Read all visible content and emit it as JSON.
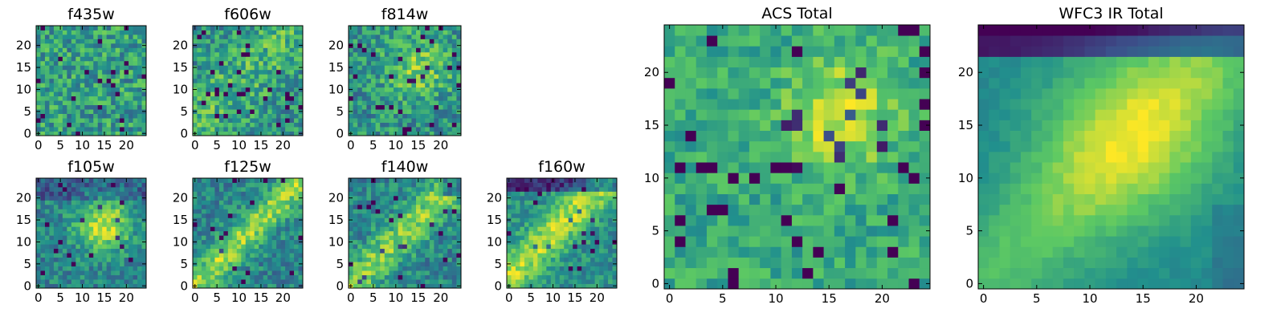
{
  "chart_data": [
    {
      "type": "heatmap",
      "title": "f435w",
      "x": [
        0,
        24
      ],
      "y": [
        0,
        24
      ],
      "xlim": [
        -0.5,
        24.5
      ],
      "ylim": [
        -0.5,
        24.5
      ],
      "xticks": [
        "0",
        "5",
        "10",
        "15",
        "20"
      ],
      "yticks": [
        "0",
        "5",
        "10",
        "15",
        "20"
      ],
      "grid": false,
      "colormap": "viridis",
      "pattern": "uniform noisy field, no clear source",
      "value_range": [
        0,
        1
      ]
    },
    {
      "type": "heatmap",
      "title": "f606w",
      "x": [
        0,
        24
      ],
      "y": [
        0,
        24
      ],
      "xlim": [
        -0.5,
        24.5
      ],
      "ylim": [
        -0.5,
        24.5
      ],
      "xticks": [
        "0",
        "5",
        "10",
        "15",
        "20"
      ],
      "yticks": [
        "0",
        "5",
        "10",
        "15",
        "20"
      ],
      "grid": false,
      "colormap": "viridis",
      "pattern": "noisy field, faint central diagonal brightening",
      "value_range": [
        0,
        1
      ]
    },
    {
      "type": "heatmap",
      "title": "f814w",
      "x": [
        0,
        24
      ],
      "y": [
        0,
        24
      ],
      "xlim": [
        -0.5,
        24.5
      ],
      "ylim": [
        -0.5,
        24.5
      ],
      "xticks": [
        "0",
        "5",
        "10",
        "15",
        "20"
      ],
      "yticks": [
        "0",
        "5",
        "10",
        "15",
        "20"
      ],
      "grid": false,
      "colormap": "viridis",
      "pattern": "noisy field, brighter center near x~15 y~15",
      "value_range": [
        0,
        1
      ]
    },
    {
      "type": "heatmap",
      "title": "f105w",
      "x": [
        0,
        24
      ],
      "y": [
        0,
        24
      ],
      "xlim": [
        -0.5,
        24.5
      ],
      "ylim": [
        -0.5,
        24.5
      ],
      "xticks": [
        "0",
        "5",
        "10",
        "15",
        "20"
      ],
      "yticks": [
        "0",
        "5",
        "10",
        "15",
        "20"
      ],
      "grid": false,
      "colormap": "viridis",
      "pattern": "bright blob near x~15 y~14, darker top rows",
      "value_range": [
        0,
        1
      ]
    },
    {
      "type": "heatmap",
      "title": "f125w",
      "x": [
        0,
        24
      ],
      "y": [
        0,
        24
      ],
      "xlim": [
        -0.5,
        24.5
      ],
      "ylim": [
        -0.5,
        24.5
      ],
      "xticks": [
        "0",
        "5",
        "10",
        "15",
        "20"
      ],
      "yticks": [
        "0",
        "5",
        "10",
        "15",
        "20"
      ],
      "grid": false,
      "colormap": "viridis",
      "pattern": "diagonal bright band from lower-left to upper-right",
      "value_range": [
        0,
        1
      ]
    },
    {
      "type": "heatmap",
      "title": "f140w",
      "x": [
        0,
        24
      ],
      "y": [
        0,
        24
      ],
      "xlim": [
        -0.5,
        24.5
      ],
      "ylim": [
        -0.5,
        24.5
      ],
      "xticks": [
        "0",
        "5",
        "10",
        "15",
        "20"
      ],
      "yticks": [
        "0",
        "5",
        "10",
        "15",
        "20"
      ],
      "grid": false,
      "colormap": "viridis",
      "pattern": "diagonal bright structure, dark top-right corner",
      "value_range": [
        0,
        1
      ]
    },
    {
      "type": "heatmap",
      "title": "f160w",
      "x": [
        0,
        24
      ],
      "y": [
        0,
        24
      ],
      "xlim": [
        -0.5,
        24.5
      ],
      "ylim": [
        -0.5,
        24.5
      ],
      "xticks": [
        "0",
        "5",
        "10",
        "15",
        "20"
      ],
      "yticks": [
        "0",
        "5",
        "10",
        "15",
        "20"
      ],
      "grid": false,
      "colormap": "viridis",
      "pattern": "diagonal bright band, dark top rows",
      "value_range": [
        0,
        1
      ]
    },
    {
      "type": "heatmap",
      "title": "ACS Total",
      "x": [
        0,
        24
      ],
      "y": [
        0,
        24
      ],
      "xlim": [
        -0.5,
        24.5
      ],
      "ylim": [
        -0.5,
        24.5
      ],
      "xticks": [
        "0",
        "5",
        "10",
        "15",
        "20"
      ],
      "yticks": [
        "0",
        "5",
        "10",
        "15",
        "20"
      ],
      "grid": false,
      "colormap": "viridis",
      "pattern": "noisy field, bright spot near x~16 y~16",
      "value_range": [
        0,
        1
      ]
    },
    {
      "type": "heatmap",
      "title": "WFC3 IR Total",
      "x": [
        0,
        24
      ],
      "y": [
        0,
        24
      ],
      "xlim": [
        -0.5,
        24.5
      ],
      "ylim": [
        -0.5,
        24.5
      ],
      "xticks": [
        "0",
        "5",
        "10",
        "15",
        "20"
      ],
      "yticks": [
        "0",
        "5",
        "10",
        "15",
        "20"
      ],
      "grid": false,
      "colormap": "viridis",
      "pattern": "smooth diagonal bright band peaking near x~14 y~14, dark top rows",
      "value_range": [
        0,
        1
      ]
    }
  ],
  "colors": {
    "viridis_stops": [
      "#440154",
      "#3b528b",
      "#21908d",
      "#5dc963",
      "#fde725"
    ]
  }
}
